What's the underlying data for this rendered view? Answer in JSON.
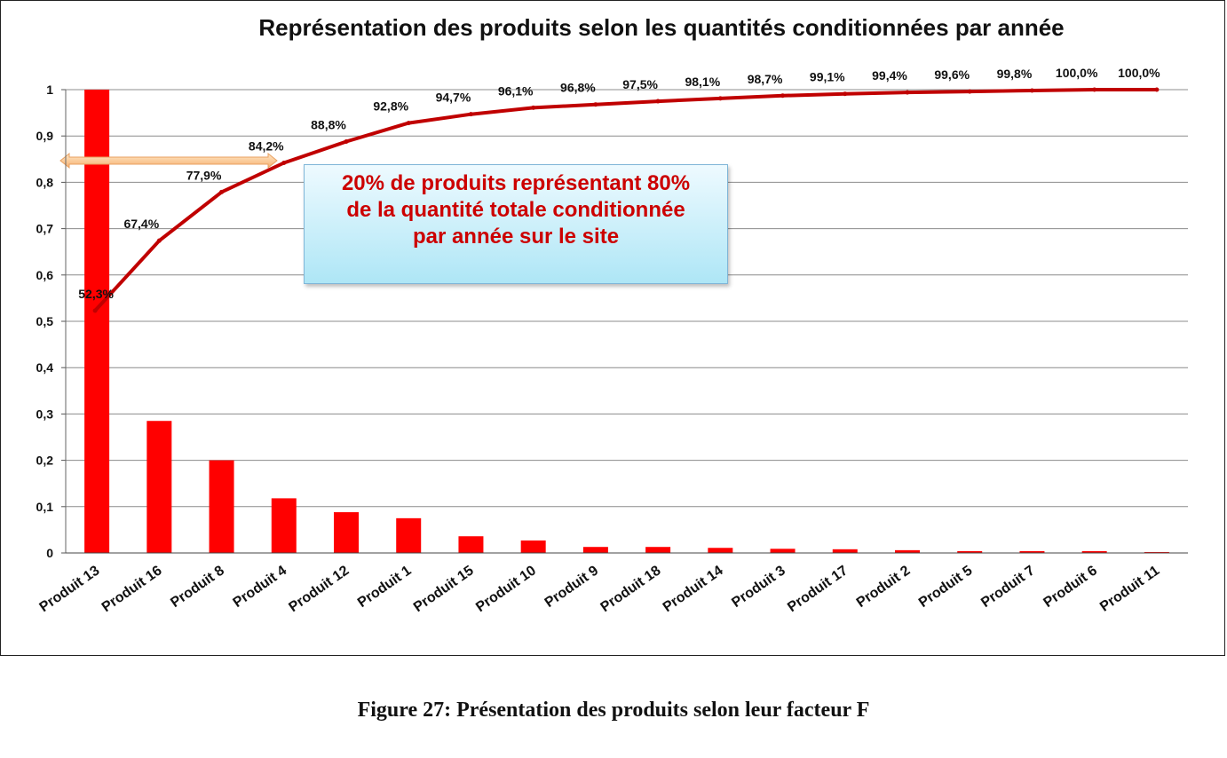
{
  "figure_caption": "Figure 27: Présentation des produits selon leur facteur F",
  "chart_data": {
    "type": "bar",
    "title": "Représentation des produits selon les quantités conditionnées par année",
    "categories": [
      "Produit 13",
      "Produit 16",
      "Produit 8",
      "Produit 4",
      "Produit 12",
      "Produit 1",
      "Produit 15",
      "Produit 10",
      "Produit 9",
      "Produit 18",
      "Produit 14",
      "Produit 3",
      "Produit 17",
      "Produit 2",
      "Produit 5",
      "Produit 7",
      "Produit 6",
      "Produit 11"
    ],
    "series": [
      {
        "type": "bar",
        "values": [
          1,
          0.285,
          0.2,
          0.118,
          0.088,
          0.075,
          0.036,
          0.027,
          0.013,
          0.013,
          0.011,
          0.009,
          0.008,
          0.006,
          0.004,
          0.004,
          0.004,
          0.002
        ],
        "color": "#ff0000"
      },
      {
        "type": "line",
        "values": [
          0.523,
          0.674,
          0.779,
          0.842,
          0.888,
          0.928,
          0.947,
          0.961,
          0.968,
          0.975,
          0.981,
          0.987,
          0.991,
          0.994,
          0.996,
          0.998,
          1.0,
          1.0
        ],
        "labels": [
          "52,3%",
          "67,4%",
          "77,9%",
          "84,2%",
          "88,8%",
          "92,8%",
          "94,7%",
          "96,1%",
          "96,8%",
          "97,5%",
          "98,1%",
          "98,7%",
          "99,1%",
          "99,4%",
          "99,6%",
          "99,8%",
          "100,0%",
          "100,0%"
        ],
        "color": "#c00000"
      }
    ],
    "y_ticks": [
      "0",
      "0,1",
      "0,2",
      "0,3",
      "0,4",
      "0,5",
      "0,6",
      "0,7",
      "0,8",
      "0,9",
      "1"
    ],
    "ylim": [
      0,
      1
    ],
    "grid": true,
    "annotation": {
      "lines": [
        "20% de produits représentant  80%",
        "de la quantité totale conditionnée",
        "par année sur le site"
      ]
    }
  }
}
